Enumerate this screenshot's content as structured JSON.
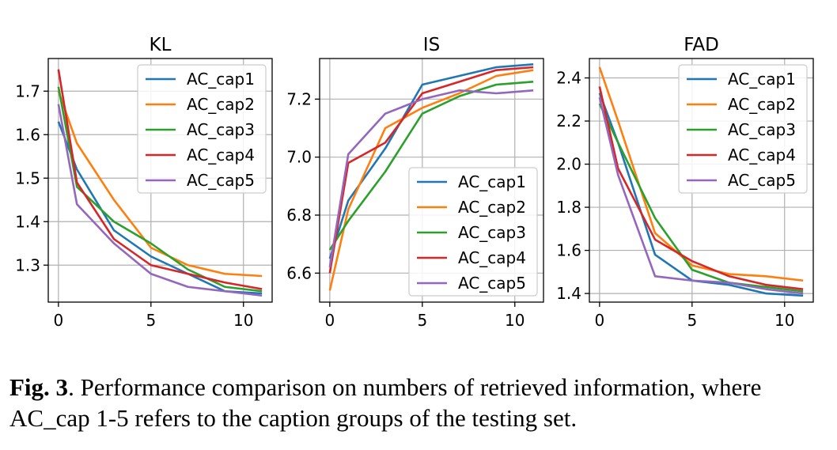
{
  "chart_data": [
    {
      "type": "line",
      "title": "KL",
      "xlim": [
        -0.55,
        11.55
      ],
      "ylim": [
        1.215,
        1.775
      ],
      "xticks": [
        0,
        5,
        10
      ],
      "yticks": [
        1.3,
        1.4,
        1.5,
        1.6,
        1.7
      ],
      "ytick_labels": [
        "1.3",
        "1.4",
        "1.5",
        "1.6",
        "1.7"
      ],
      "grid": true,
      "legend": "upper-right",
      "x": [
        0,
        1,
        3,
        5,
        7,
        9,
        11
      ],
      "series": [
        {
          "name": "AC_cap1",
          "color": "#1f77b4",
          "values": [
            1.63,
            1.52,
            1.38,
            1.32,
            1.28,
            1.24,
            1.235
          ]
        },
        {
          "name": "AC_cap2",
          "color": "#ff7f0e",
          "values": [
            1.7,
            1.58,
            1.45,
            1.34,
            1.3,
            1.28,
            1.275
          ]
        },
        {
          "name": "AC_cap3",
          "color": "#2ca02c",
          "values": [
            1.71,
            1.48,
            1.4,
            1.35,
            1.29,
            1.25,
            1.24
          ]
        },
        {
          "name": "AC_cap4",
          "color": "#d62728",
          "values": [
            1.75,
            1.49,
            1.36,
            1.3,
            1.28,
            1.26,
            1.245
          ]
        },
        {
          "name": "AC_cap5",
          "color": "#9467bd",
          "values": [
            1.67,
            1.44,
            1.35,
            1.28,
            1.25,
            1.24,
            1.23
          ]
        }
      ]
    },
    {
      "type": "line",
      "title": "IS",
      "xlim": [
        -0.55,
        11.55
      ],
      "ylim": [
        6.5,
        7.34
      ],
      "xticks": [
        0,
        5,
        10
      ],
      "yticks": [
        6.6,
        6.8,
        7.0,
        7.2
      ],
      "ytick_labels": [
        "6.6",
        "6.8",
        "7.0",
        "7.2"
      ],
      "grid": true,
      "legend": "lower-right",
      "x": [
        0,
        1,
        3,
        5,
        7,
        9,
        11
      ],
      "series": [
        {
          "name": "AC_cap1",
          "color": "#1f77b4",
          "values": [
            6.65,
            6.85,
            7.03,
            7.25,
            7.28,
            7.31,
            7.32
          ]
        },
        {
          "name": "AC_cap2",
          "color": "#ff7f0e",
          "values": [
            6.54,
            6.82,
            7.1,
            7.17,
            7.22,
            7.28,
            7.3
          ]
        },
        {
          "name": "AC_cap3",
          "color": "#2ca02c",
          "values": [
            6.68,
            6.78,
            6.95,
            7.15,
            7.21,
            7.25,
            7.26
          ]
        },
        {
          "name": "AC_cap4",
          "color": "#d62728",
          "values": [
            6.6,
            6.98,
            7.05,
            7.22,
            7.26,
            7.3,
            7.31
          ]
        },
        {
          "name": "AC_cap5",
          "color": "#9467bd",
          "values": [
            6.62,
            7.01,
            7.15,
            7.2,
            7.23,
            7.22,
            7.23
          ]
        }
      ]
    },
    {
      "type": "line",
      "title": "FAD",
      "xlim": [
        -0.55,
        11.55
      ],
      "ylim": [
        1.36,
        2.49
      ],
      "xticks": [
        0,
        5,
        10
      ],
      "yticks": [
        1.4,
        1.6,
        1.8,
        2.0,
        2.2,
        2.4
      ],
      "ytick_labels": [
        "1.4",
        "1.6",
        "1.8",
        "2.0",
        "2.2",
        "2.4"
      ],
      "grid": true,
      "legend": "upper-right",
      "x": [
        0,
        1,
        3,
        5,
        7,
        9,
        11
      ],
      "series": [
        {
          "name": "AC_cap1",
          "color": "#1f77b4",
          "values": [
            2.33,
            2.1,
            1.58,
            1.46,
            1.44,
            1.4,
            1.39
          ]
        },
        {
          "name": "AC_cap2",
          "color": "#ff7f0e",
          "values": [
            2.45,
            2.2,
            1.68,
            1.53,
            1.49,
            1.48,
            1.46
          ]
        },
        {
          "name": "AC_cap3",
          "color": "#2ca02c",
          "values": [
            2.28,
            2.1,
            1.75,
            1.51,
            1.45,
            1.43,
            1.41
          ]
        },
        {
          "name": "AC_cap4",
          "color": "#d62728",
          "values": [
            2.36,
            1.98,
            1.65,
            1.55,
            1.48,
            1.44,
            1.42
          ]
        },
        {
          "name": "AC_cap5",
          "color": "#9467bd",
          "values": [
            2.31,
            1.95,
            1.48,
            1.46,
            1.45,
            1.42,
            1.4
          ]
        }
      ]
    }
  ],
  "caption": {
    "label": "Fig. 3",
    "text": ". Performance comparison on numbers of retrieved information, where AC_cap 1-5 refers to the caption groups of the testing set."
  }
}
